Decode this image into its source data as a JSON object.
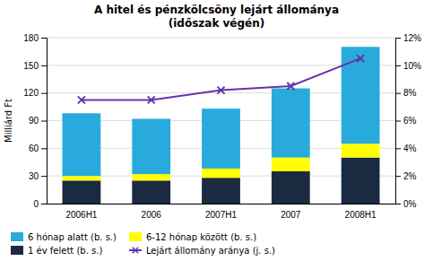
{
  "chart_data": {
    "type": "bar",
    "stacked": true,
    "title": "A hitel és pénzkölcsöny lejárt állománya",
    "subtitle": "(időszak végén)",
    "categories": [
      "2006H1",
      "2006",
      "2007H1",
      "2007",
      "2008H1"
    ],
    "ylabel": "Milliárd Ft",
    "ylim": [
      0,
      180
    ],
    "yticks": [
      0,
      30,
      60,
      90,
      120,
      150,
      180
    ],
    "y2lim": [
      0,
      12
    ],
    "y2ticks": [
      {
        "value": 0,
        "label": "0%"
      },
      {
        "value": 2,
        "label": "2%"
      },
      {
        "value": 4,
        "label": "4%"
      },
      {
        "value": 6,
        "label": "6%"
      },
      {
        "value": 8,
        "label": "8%"
      },
      {
        "value": 10,
        "label": "10%"
      },
      {
        "value": 12,
        "label": "12%"
      }
    ],
    "grid": true,
    "legend": "lower left",
    "series": [
      {
        "name": "1 év felett (b. s.)",
        "color": "#1a2a40",
        "values": [
          25,
          25,
          28,
          35,
          50
        ]
      },
      {
        "name": "6-12 hónap között (b. s.)",
        "color": "#ffff00",
        "values": [
          5,
          7,
          10,
          15,
          15
        ]
      },
      {
        "name": "6 hónap alatt (b. s.)",
        "color": "#29aadd",
        "values": [
          68,
          60,
          65,
          75,
          105
        ]
      },
      {
        "name": "Lejárt állomány aránya (j. s.)",
        "color": "#6633aa",
        "values": [
          7.5,
          7.5,
          8.2,
          8.5,
          10.5
        ],
        "type": "line",
        "axis": "y2",
        "marker": "x"
      }
    ]
  }
}
